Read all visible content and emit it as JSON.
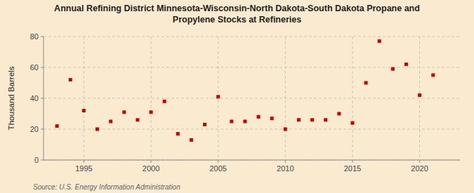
{
  "chart_data": {
    "type": "scatter",
    "title": "Annual Refining District Minnesota-Wisconsin-North Dakota-South Dakota Propane and\nPropylene Stocks at Refineries",
    "ylabel": "Thousand Barrels",
    "source": "Source: U.S. Energy Information Administration",
    "x": [
      1993,
      1994,
      1995,
      1996,
      1997,
      1998,
      1999,
      2000,
      2001,
      2002,
      2003,
      2004,
      2005,
      2006,
      2007,
      2008,
      2009,
      2010,
      2011,
      2012,
      2013,
      2014,
      2015,
      2016,
      2017,
      2018,
      2019,
      2020,
      2021
    ],
    "values": [
      22,
      52,
      32,
      20,
      25,
      31,
      26,
      31,
      38,
      17,
      13,
      23,
      41,
      25,
      25,
      28,
      27,
      20,
      26,
      26,
      26,
      30,
      24,
      50,
      77,
      59,
      62,
      42,
      55
    ],
    "color": "#cc0000",
    "marker": "square",
    "grid": true,
    "xlim": [
      1992,
      2023
    ],
    "ylim": [
      0,
      80
    ],
    "xticks": [
      1995,
      2000,
      2005,
      2010,
      2015,
      2020
    ],
    "yticks": [
      0,
      20,
      40,
      60,
      80
    ]
  }
}
